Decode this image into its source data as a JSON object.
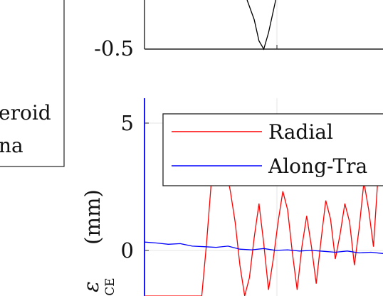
{
  "chart_data": [
    {
      "type": "line",
      "panel": "top",
      "visible_portion": "lower edge only",
      "y_tick_labels": [
        "-0.5"
      ],
      "ylim_visible": [
        -0.5,
        -0.2
      ],
      "series": [
        {
          "color": "#000000",
          "x": [
            0.43,
            0.46,
            0.48,
            0.5,
            0.52,
            0.55
          ],
          "y": [
            -0.2,
            -0.32,
            -0.45,
            -0.5,
            -0.4,
            -0.2
          ]
        }
      ]
    },
    {
      "type": "line",
      "panel": "bottom",
      "y_tick_labels": [
        "5",
        "0"
      ],
      "y_ticks": [
        5,
        0
      ],
      "ylabel_visible": "(mm)",
      "ylabel_symbol": "ε",
      "ylabel_subscript": "CE",
      "ylim_visible": [
        -2.2,
        6.0
      ],
      "legend": {
        "placement": "top-right",
        "entries": [
          "Radial",
          "Along-Tra"
        ],
        "colors": [
          "#ff0000",
          "#0000ff"
        ]
      },
      "series": [
        {
          "name": "Radial",
          "color": "#ff0000",
          "x": [
            0.0,
            0.04,
            0.08,
            0.12,
            0.16,
            0.2,
            0.24,
            0.26,
            0.28,
            0.3,
            0.32,
            0.34,
            0.36,
            0.38,
            0.4,
            0.42,
            0.44,
            0.46,
            0.48,
            0.5,
            0.52,
            0.54,
            0.56,
            0.58,
            0.6,
            0.62,
            0.64,
            0.66,
            0.68,
            0.7,
            0.72,
            0.74,
            0.76,
            0.78,
            0.8,
            0.82,
            0.84,
            0.86,
            0.88,
            0.9,
            0.92,
            0.94,
            0.96,
            0.98,
            1.0
          ],
          "y": [
            -2.2,
            -2.2,
            -2.2,
            -2.2,
            -2.2,
            -2.2,
            -2.2,
            -0.5,
            1.5,
            3.0,
            2.6,
            2.0,
            1.2,
            0.2,
            -1.2,
            -2.2,
            -1.6,
            -0.3,
            0.8,
            -0.5,
            -2.0,
            -1.0,
            0.2,
            1.2,
            0.6,
            -0.8,
            -2.0,
            -0.6,
            0.4,
            -0.6,
            -1.8,
            -0.4,
            0.9,
            0.3,
            -1.0,
            -0.2,
            0.8,
            0.2,
            -1.2,
            0.0,
            1.5,
            0.6,
            -0.6,
            1.8,
            3.2
          ]
        },
        {
          "name": "Along-Tra",
          "color": "#0000ff",
          "x": [
            0.0,
            0.05,
            0.1,
            0.15,
            0.2,
            0.25,
            0.3,
            0.35,
            0.4,
            0.45,
            0.5,
            0.55,
            0.6,
            0.65,
            0.7,
            0.75,
            0.8,
            0.85,
            0.9,
            0.95,
            1.0
          ],
          "y": [
            -0.45,
            -0.48,
            -0.52,
            -0.5,
            -0.58,
            -0.6,
            -0.62,
            -0.58,
            -0.68,
            -0.7,
            -0.66,
            -0.72,
            -0.7,
            -0.74,
            -0.72,
            -0.75,
            -0.78,
            -0.74,
            -0.8,
            -0.78,
            -0.82
          ]
        }
      ]
    }
  ],
  "side_legend": {
    "lines": [
      "eroid",
      "na"
    ]
  }
}
